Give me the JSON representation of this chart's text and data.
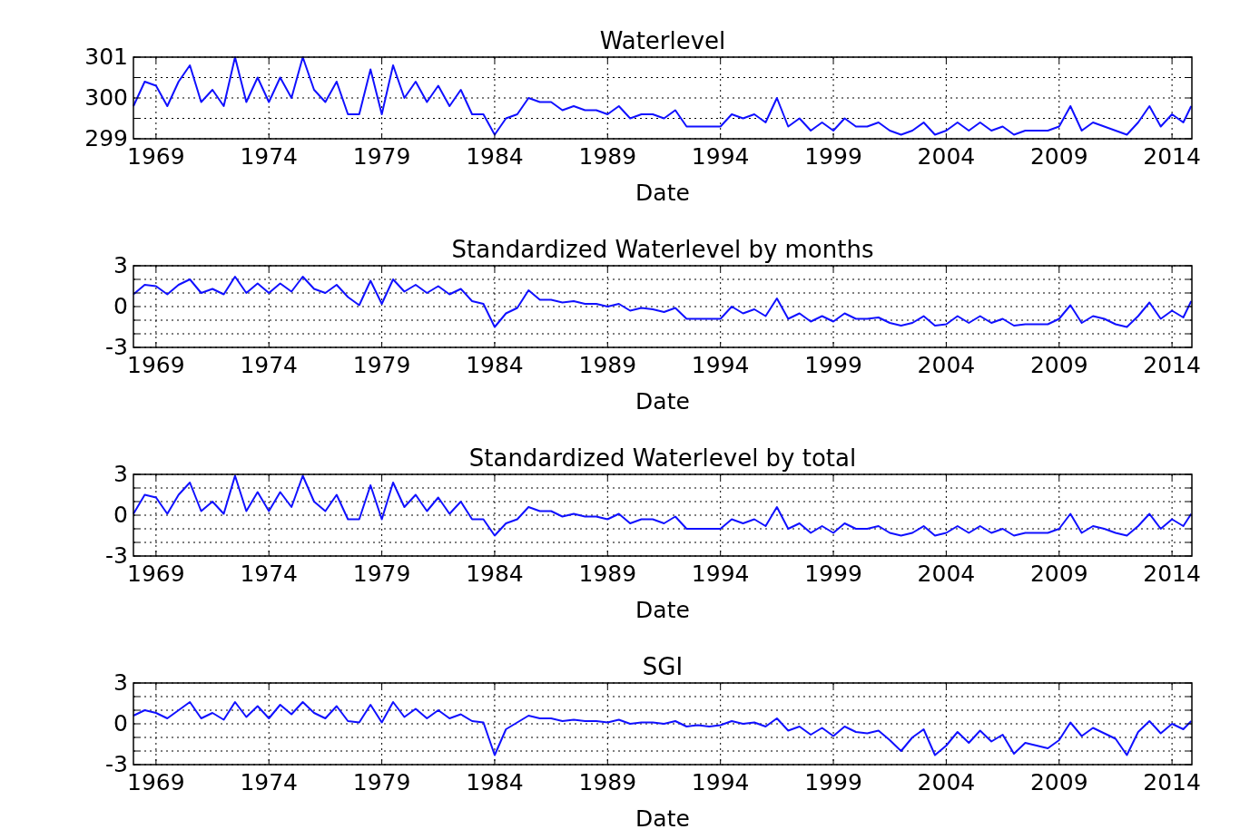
{
  "chart_data": [
    {
      "type": "line",
      "title": "Waterlevel",
      "xlabel": "Date",
      "xlim": [
        1968,
        2014.88
      ],
      "xticks": [
        1969,
        1974,
        1979,
        1984,
        1989,
        1994,
        1999,
        2004,
        2009,
        2014
      ],
      "ylim": [
        299,
        301
      ],
      "yticks": [
        299,
        {
          "value": 299.5,
          "label": null
        },
        300,
        {
          "value": 300.5,
          "label": null
        },
        301
      ],
      "grid": true,
      "x": [
        1968,
        1968.5,
        1969,
        1969.5,
        1970,
        1970.5,
        1971,
        1971.5,
        1972,
        1972.5,
        1973,
        1973.5,
        1974,
        1974.5,
        1975,
        1975.5,
        1976,
        1976.5,
        1977,
        1977.5,
        1978,
        1978.5,
        1979,
        1979.5,
        1980,
        1980.5,
        1981,
        1981.5,
        1982,
        1982.5,
        1983,
        1983.5,
        1984,
        1984.5,
        1985,
        1985.5,
        1986,
        1986.5,
        1987,
        1987.5,
        1988,
        1988.5,
        1989,
        1989.5,
        1990,
        1990.5,
        1991,
        1991.5,
        1992,
        1992.5,
        1993,
        1993.5,
        1994,
        1994.5,
        1995,
        1995.5,
        1996,
        1996.5,
        1997,
        1997.5,
        1998,
        1998.5,
        1999,
        1999.5,
        2000,
        2000.5,
        2001,
        2001.5,
        2002,
        2002.5,
        2003,
        2003.5,
        2004,
        2004.5,
        2005,
        2005.5,
        2006,
        2006.5,
        2007,
        2007.5,
        2008,
        2008.5,
        2009,
        2009.5,
        2010,
        2010.5,
        2011,
        2011.5,
        2012,
        2012.5,
        2013,
        2013.5,
        2014,
        2014.5,
        2014.85
      ],
      "series": [
        {
          "color": "#1010ff",
          "values": [
            299.8,
            300.4,
            300.3,
            299.8,
            300.4,
            300.8,
            299.9,
            300.2,
            299.8,
            301.0,
            299.9,
            300.5,
            299.9,
            300.5,
            300.0,
            301.0,
            300.2,
            299.9,
            300.4,
            299.6,
            299.6,
            300.7,
            299.6,
            300.8,
            300.0,
            300.4,
            299.9,
            300.3,
            299.8,
            300.2,
            299.6,
            299.6,
            299.1,
            299.5,
            299.6,
            300.0,
            299.9,
            299.9,
            299.7,
            299.8,
            299.7,
            299.7,
            299.6,
            299.8,
            299.5,
            299.6,
            299.6,
            299.5,
            299.7,
            299.3,
            299.3,
            299.3,
            299.3,
            299.6,
            299.5,
            299.6,
            299.4,
            300.0,
            299.3,
            299.5,
            299.2,
            299.4,
            299.2,
            299.5,
            299.3,
            299.3,
            299.4,
            299.2,
            299.1,
            299.2,
            299.4,
            299.1,
            299.2,
            299.4,
            299.2,
            299.4,
            299.2,
            299.3,
            299.1,
            299.2,
            299.2,
            299.2,
            299.3,
            299.8,
            299.2,
            299.4,
            299.3,
            299.2,
            299.1,
            299.4,
            299.8,
            299.3,
            299.6,
            299.4,
            299.8
          ]
        }
      ]
    },
    {
      "type": "line",
      "title": "Standardized Waterlevel by months",
      "xlabel": "Date",
      "xlim": [
        1968,
        2014.88
      ],
      "xticks": [
        1969,
        1974,
        1979,
        1984,
        1989,
        1994,
        1999,
        2004,
        2009,
        2014
      ],
      "ylim": [
        -3,
        3
      ],
      "yticks": [
        -3,
        {
          "value": -2,
          "label": null
        },
        {
          "value": -1,
          "label": null
        },
        0,
        {
          "value": 1,
          "label": null
        },
        {
          "value": 2,
          "label": null
        },
        3
      ],
      "grid": true,
      "x": [
        1968,
        1968.5,
        1969,
        1969.5,
        1970,
        1970.5,
        1971,
        1971.5,
        1972,
        1972.5,
        1973,
        1973.5,
        1974,
        1974.5,
        1975,
        1975.5,
        1976,
        1976.5,
        1977,
        1977.5,
        1978,
        1978.5,
        1979,
        1979.5,
        1980,
        1980.5,
        1981,
        1981.5,
        1982,
        1982.5,
        1983,
        1983.5,
        1984,
        1984.5,
        1985,
        1985.5,
        1986,
        1986.5,
        1987,
        1987.5,
        1988,
        1988.5,
        1989,
        1989.5,
        1990,
        1990.5,
        1991,
        1991.5,
        1992,
        1992.5,
        1993,
        1993.5,
        1994,
        1994.5,
        1995,
        1995.5,
        1996,
        1996.5,
        1997,
        1997.5,
        1998,
        1998.5,
        1999,
        1999.5,
        2000,
        2000.5,
        2001,
        2001.5,
        2002,
        2002.5,
        2003,
        2003.5,
        2004,
        2004.5,
        2005,
        2005.5,
        2006,
        2006.5,
        2007,
        2007.5,
        2008,
        2008.5,
        2009,
        2009.5,
        2010,
        2010.5,
        2011,
        2011.5,
        2012,
        2012.5,
        2013,
        2013.5,
        2014,
        2014.5,
        2014.85
      ],
      "series": [
        {
          "color": "#1010ff",
          "values": [
            0.9,
            1.6,
            1.5,
            0.9,
            1.6,
            2.0,
            1.0,
            1.3,
            0.9,
            2.2,
            1.0,
            1.7,
            1.0,
            1.7,
            1.1,
            2.2,
            1.3,
            1.0,
            1.6,
            0.7,
            0.1,
            1.9,
            0.2,
            2.0,
            1.1,
            1.6,
            1.0,
            1.5,
            0.9,
            1.3,
            0.4,
            0.2,
            -1.5,
            -0.5,
            -0.1,
            1.2,
            0.5,
            0.5,
            0.3,
            0.4,
            0.2,
            0.2,
            0.0,
            0.2,
            -0.3,
            -0.1,
            -0.2,
            -0.4,
            -0.1,
            -0.9,
            -0.9,
            -0.9,
            -0.9,
            0.0,
            -0.5,
            -0.2,
            -0.7,
            0.6,
            -0.9,
            -0.5,
            -1.1,
            -0.7,
            -1.1,
            -0.5,
            -0.9,
            -0.9,
            -0.8,
            -1.2,
            -1.4,
            -1.2,
            -0.7,
            -1.4,
            -1.3,
            -0.7,
            -1.2,
            -0.7,
            -1.2,
            -0.9,
            -1.4,
            -1.3,
            -1.3,
            -1.3,
            -0.9,
            0.1,
            -1.2,
            -0.7,
            -0.9,
            -1.3,
            -1.5,
            -0.7,
            0.3,
            -0.9,
            -0.3,
            -0.8,
            0.4
          ]
        }
      ]
    },
    {
      "type": "line",
      "title": "Standardized Waterlevel by total",
      "xlabel": "Date",
      "xlim": [
        1968,
        2014.88
      ],
      "xticks": [
        1969,
        1974,
        1979,
        1984,
        1989,
        1994,
        1999,
        2004,
        2009,
        2014
      ],
      "ylim": [
        -3,
        3
      ],
      "yticks": [
        -3,
        {
          "value": -2,
          "label": null
        },
        {
          "value": -1,
          "label": null
        },
        0,
        {
          "value": 1,
          "label": null
        },
        {
          "value": 2,
          "label": null
        },
        3
      ],
      "grid": true,
      "x": [
        1968,
        1968.5,
        1969,
        1969.5,
        1970,
        1970.5,
        1971,
        1971.5,
        1972,
        1972.5,
        1973,
        1973.5,
        1974,
        1974.5,
        1975,
        1975.5,
        1976,
        1976.5,
        1977,
        1977.5,
        1978,
        1978.5,
        1979,
        1979.5,
        1980,
        1980.5,
        1981,
        1981.5,
        1982,
        1982.5,
        1983,
        1983.5,
        1984,
        1984.5,
        1985,
        1985.5,
        1986,
        1986.5,
        1987,
        1987.5,
        1988,
        1988.5,
        1989,
        1989.5,
        1990,
        1990.5,
        1991,
        1991.5,
        1992,
        1992.5,
        1993,
        1993.5,
        1994,
        1994.5,
        1995,
        1995.5,
        1996,
        1996.5,
        1997,
        1997.5,
        1998,
        1998.5,
        1999,
        1999.5,
        2000,
        2000.5,
        2001,
        2001.5,
        2002,
        2002.5,
        2003,
        2003.5,
        2004,
        2004.5,
        2005,
        2005.5,
        2006,
        2006.5,
        2007,
        2007.5,
        2008,
        2008.5,
        2009,
        2009.5,
        2010,
        2010.5,
        2011,
        2011.5,
        2012,
        2012.5,
        2013,
        2013.5,
        2014,
        2014.5,
        2014.85
      ],
      "series": [
        {
          "color": "#1010ff",
          "values": [
            0.1,
            1.5,
            1.3,
            0.1,
            1.5,
            2.4,
            0.3,
            1.0,
            0.1,
            2.9,
            0.3,
            1.7,
            0.3,
            1.7,
            0.6,
            2.9,
            1.0,
            0.3,
            1.5,
            -0.3,
            -0.3,
            2.2,
            -0.3,
            2.4,
            0.6,
            1.5,
            0.3,
            1.3,
            0.1,
            1.0,
            -0.3,
            -0.3,
            -1.5,
            -0.6,
            -0.3,
            0.6,
            0.3,
            0.3,
            -0.1,
            0.1,
            -0.1,
            -0.1,
            -0.3,
            0.1,
            -0.6,
            -0.3,
            -0.3,
            -0.6,
            -0.1,
            -1.0,
            -1.0,
            -1.0,
            -1.0,
            -0.3,
            -0.6,
            -0.3,
            -0.8,
            0.6,
            -1.0,
            -0.6,
            -1.3,
            -0.8,
            -1.3,
            -0.6,
            -1.0,
            -1.0,
            -0.8,
            -1.3,
            -1.5,
            -1.3,
            -0.8,
            -1.5,
            -1.3,
            -0.8,
            -1.3,
            -0.8,
            -1.3,
            -1.0,
            -1.5,
            -1.3,
            -1.3,
            -1.3,
            -1.0,
            0.1,
            -1.3,
            -0.8,
            -1.0,
            -1.3,
            -1.5,
            -0.8,
            0.1,
            -1.0,
            -0.3,
            -0.8,
            0.1
          ]
        }
      ]
    },
    {
      "type": "line",
      "title": "SGI",
      "xlabel": "Date",
      "xlim": [
        1968,
        2014.88
      ],
      "xticks": [
        1969,
        1974,
        1979,
        1984,
        1989,
        1994,
        1999,
        2004,
        2009,
        2014
      ],
      "ylim": [
        -3,
        3
      ],
      "yticks": [
        -3,
        {
          "value": -2,
          "label": null
        },
        {
          "value": -1,
          "label": null
        },
        0,
        {
          "value": 1,
          "label": null
        },
        {
          "value": 2,
          "label": null
        },
        3
      ],
      "grid": true,
      "x": [
        1968,
        1968.5,
        1969,
        1969.5,
        1970,
        1970.5,
        1971,
        1971.5,
        1972,
        1972.5,
        1973,
        1973.5,
        1974,
        1974.5,
        1975,
        1975.5,
        1976,
        1976.5,
        1977,
        1977.5,
        1978,
        1978.5,
        1979,
        1979.5,
        1980,
        1980.5,
        1981,
        1981.5,
        1982,
        1982.5,
        1983,
        1983.5,
        1984,
        1984.5,
        1985,
        1985.5,
        1986,
        1986.5,
        1987,
        1987.5,
        1988,
        1988.5,
        1989,
        1989.5,
        1990,
        1990.5,
        1991,
        1991.5,
        1992,
        1992.5,
        1993,
        1993.5,
        1994,
        1994.5,
        1995,
        1995.5,
        1996,
        1996.5,
        1997,
        1997.5,
        1998,
        1998.5,
        1999,
        1999.5,
        2000,
        2000.5,
        2001,
        2001.5,
        2002,
        2002.5,
        2003,
        2003.5,
        2004,
        2004.5,
        2005,
        2005.5,
        2006,
        2006.5,
        2007,
        2007.5,
        2008,
        2008.5,
        2009,
        2009.5,
        2010,
        2010.5,
        2011,
        2011.5,
        2012,
        2012.5,
        2013,
        2013.5,
        2014,
        2014.5,
        2014.85
      ],
      "series": [
        {
          "color": "#1010ff",
          "values": [
            0.6,
            1.0,
            0.8,
            0.4,
            1.0,
            1.6,
            0.4,
            0.8,
            0.3,
            1.6,
            0.5,
            1.3,
            0.4,
            1.4,
            0.7,
            1.6,
            0.8,
            0.4,
            1.3,
            0.2,
            0.1,
            1.4,
            0.1,
            1.6,
            0.5,
            1.1,
            0.4,
            1.0,
            0.4,
            0.7,
            0.2,
            0.1,
            -2.3,
            -0.4,
            0.1,
            0.6,
            0.4,
            0.4,
            0.2,
            0.3,
            0.2,
            0.2,
            0.1,
            0.3,
            0.0,
            0.1,
            0.1,
            0.0,
            0.2,
            -0.2,
            -0.1,
            -0.2,
            -0.1,
            0.2,
            0.0,
            0.1,
            -0.2,
            0.4,
            -0.5,
            -0.2,
            -0.8,
            -0.3,
            -0.9,
            -0.2,
            -0.6,
            -0.7,
            -0.5,
            -1.2,
            -2.0,
            -1.0,
            -0.4,
            -2.3,
            -1.6,
            -0.6,
            -1.4,
            -0.5,
            -1.3,
            -0.8,
            -2.2,
            -1.4,
            -1.6,
            -1.8,
            -1.2,
            0.1,
            -0.9,
            -0.3,
            -0.7,
            -1.1,
            -2.3,
            -0.6,
            0.2,
            -0.7,
            0.0,
            -0.4,
            0.2
          ]
        }
      ]
    }
  ]
}
